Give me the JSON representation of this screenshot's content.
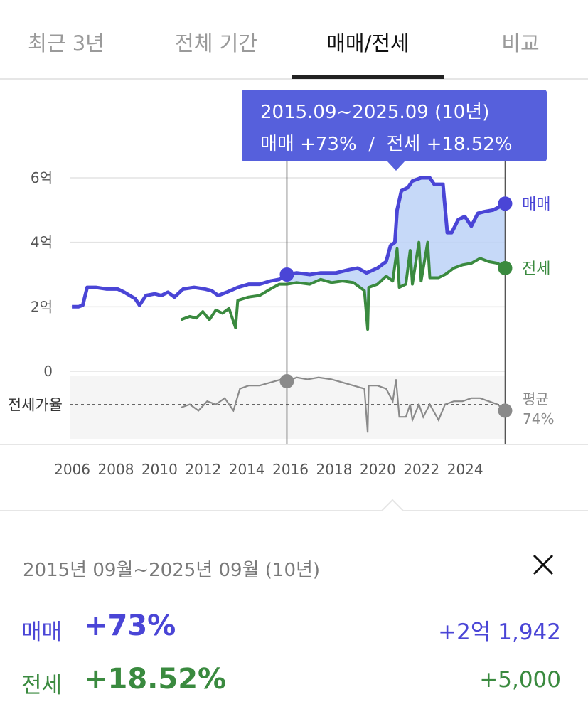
{
  "tabs": [
    {
      "label": "최근 3년",
      "active": false
    },
    {
      "label": "전체 기간",
      "active": false
    },
    {
      "label": "매매/전세",
      "active": true
    },
    {
      "label": "비교",
      "active": false
    }
  ],
  "colors": {
    "sale": "#4a45d6",
    "jeonse": "#3a8a3f",
    "ratio": "#8a8a8a",
    "tooltip_bg": "#5660dc",
    "fill": "#bcd2f7"
  },
  "tooltip": {
    "range": "2015.09~2025.09 (10년)",
    "summary": "매매 +73%  /  전세 +18.52%"
  },
  "chart_data": {
    "type": "line",
    "x_unit": "year",
    "xlim": [
      2005.8,
      2025.8
    ],
    "ylim": [
      0,
      6
    ],
    "y_ticks": [
      {
        "v": 6,
        "label": "6억"
      },
      {
        "v": 4,
        "label": "4억"
      },
      {
        "v": 2,
        "label": "2억"
      },
      {
        "v": 0,
        "label": "0"
      }
    ],
    "x_ticks": [
      "2006",
      "2008",
      "2010",
      "2012",
      "2014",
      "2016",
      "2018",
      "2020",
      "2022",
      "2024"
    ],
    "selection": {
      "start": 2015.75,
      "end": 2025.75
    },
    "series": [
      {
        "name": "매매",
        "points": [
          [
            2005.9,
            2.0
          ],
          [
            2006.2,
            2.0
          ],
          [
            2006.4,
            2.05
          ],
          [
            2006.6,
            2.6
          ],
          [
            2007.0,
            2.6
          ],
          [
            2007.5,
            2.55
          ],
          [
            2008.0,
            2.55
          ],
          [
            2008.3,
            2.45
          ],
          [
            2008.8,
            2.25
          ],
          [
            2009.0,
            2.05
          ],
          [
            2009.3,
            2.35
          ],
          [
            2009.7,
            2.4
          ],
          [
            2010.0,
            2.35
          ],
          [
            2010.3,
            2.45
          ],
          [
            2010.6,
            2.3
          ],
          [
            2011.0,
            2.55
          ],
          [
            2011.5,
            2.6
          ],
          [
            2012.0,
            2.55
          ],
          [
            2012.3,
            2.5
          ],
          [
            2012.6,
            2.35
          ],
          [
            2013.0,
            2.45
          ],
          [
            2013.5,
            2.6
          ],
          [
            2014.0,
            2.7
          ],
          [
            2014.5,
            2.7
          ],
          [
            2015.0,
            2.8
          ],
          [
            2015.4,
            2.85
          ],
          [
            2015.75,
            3.0
          ],
          [
            2016.2,
            3.05
          ],
          [
            2016.8,
            3.0
          ],
          [
            2017.3,
            3.05
          ],
          [
            2018.0,
            3.05
          ],
          [
            2018.6,
            3.15
          ],
          [
            2019.0,
            3.2
          ],
          [
            2019.4,
            3.05
          ],
          [
            2019.9,
            3.2
          ],
          [
            2020.3,
            3.4
          ],
          [
            2020.5,
            3.9
          ],
          [
            2020.7,
            4.0
          ],
          [
            2020.8,
            5.0
          ],
          [
            2021.0,
            5.6
          ],
          [
            2021.3,
            5.7
          ],
          [
            2021.5,
            5.9
          ],
          [
            2021.9,
            6.0
          ],
          [
            2022.3,
            6.0
          ],
          [
            2022.5,
            5.8
          ],
          [
            2022.9,
            5.8
          ],
          [
            2023.1,
            4.3
          ],
          [
            2023.3,
            4.3
          ],
          [
            2023.6,
            4.7
          ],
          [
            2023.9,
            4.8
          ],
          [
            2024.2,
            4.5
          ],
          [
            2024.5,
            4.9
          ],
          [
            2024.8,
            4.95
          ],
          [
            2025.2,
            5.0
          ],
          [
            2025.5,
            5.1
          ],
          [
            2025.75,
            5.2
          ]
        ]
      },
      {
        "name": "전세",
        "points": [
          [
            2010.9,
            1.6
          ],
          [
            2011.3,
            1.7
          ],
          [
            2011.6,
            1.65
          ],
          [
            2011.9,
            1.85
          ],
          [
            2012.2,
            1.6
          ],
          [
            2012.5,
            1.9
          ],
          [
            2012.8,
            1.8
          ],
          [
            2013.1,
            1.95
          ],
          [
            2013.4,
            1.35
          ],
          [
            2013.5,
            2.2
          ],
          [
            2014.0,
            2.3
          ],
          [
            2014.5,
            2.35
          ],
          [
            2015.0,
            2.55
          ],
          [
            2015.4,
            2.7
          ],
          [
            2015.75,
            2.7
          ],
          [
            2016.2,
            2.75
          ],
          [
            2016.8,
            2.7
          ],
          [
            2017.3,
            2.85
          ],
          [
            2017.8,
            2.75
          ],
          [
            2018.3,
            2.8
          ],
          [
            2018.8,
            2.75
          ],
          [
            2019.3,
            2.5
          ],
          [
            2019.45,
            1.3
          ],
          [
            2019.5,
            2.6
          ],
          [
            2019.9,
            2.7
          ],
          [
            2020.3,
            2.95
          ],
          [
            2020.6,
            2.8
          ],
          [
            2020.8,
            3.8
          ],
          [
            2020.9,
            2.6
          ],
          [
            2021.2,
            2.7
          ],
          [
            2021.4,
            3.75
          ],
          [
            2021.5,
            2.7
          ],
          [
            2021.8,
            4.0
          ],
          [
            2021.9,
            2.8
          ],
          [
            2022.2,
            4.0
          ],
          [
            2022.3,
            2.9
          ],
          [
            2022.7,
            2.9
          ],
          [
            2023.0,
            3.0
          ],
          [
            2023.4,
            3.2
          ],
          [
            2023.8,
            3.3
          ],
          [
            2024.2,
            3.35
          ],
          [
            2024.6,
            3.5
          ],
          [
            2025.0,
            3.4
          ],
          [
            2025.4,
            3.35
          ],
          [
            2025.75,
            3.2
          ]
        ]
      },
      {
        "name": "전세가율",
        "average_label": "평균",
        "average_value": "74%",
        "points": [
          [
            2010.9,
            0.5
          ],
          [
            2011.3,
            0.55
          ],
          [
            2011.7,
            0.45
          ],
          [
            2012.1,
            0.6
          ],
          [
            2012.5,
            0.55
          ],
          [
            2012.9,
            0.65
          ],
          [
            2013.3,
            0.45
          ],
          [
            2013.6,
            0.8
          ],
          [
            2014.0,
            0.85
          ],
          [
            2014.5,
            0.85
          ],
          [
            2015.0,
            0.9
          ],
          [
            2015.5,
            0.95
          ],
          [
            2015.75,
            0.92
          ],
          [
            2016.2,
            0.98
          ],
          [
            2016.7,
            0.95
          ],
          [
            2017.2,
            0.98
          ],
          [
            2017.8,
            0.95
          ],
          [
            2018.3,
            0.9
          ],
          [
            2018.8,
            0.85
          ],
          [
            2019.3,
            0.8
          ],
          [
            2019.45,
            0.1
          ],
          [
            2019.5,
            0.85
          ],
          [
            2019.9,
            0.85
          ],
          [
            2020.3,
            0.8
          ],
          [
            2020.6,
            0.6
          ],
          [
            2020.75,
            0.95
          ],
          [
            2020.9,
            0.35
          ],
          [
            2021.2,
            0.35
          ],
          [
            2021.4,
            0.55
          ],
          [
            2021.5,
            0.3
          ],
          [
            2021.8,
            0.55
          ],
          [
            2022.0,
            0.35
          ],
          [
            2022.3,
            0.55
          ],
          [
            2022.7,
            0.3
          ],
          [
            2023.0,
            0.55
          ],
          [
            2023.4,
            0.6
          ],
          [
            2023.8,
            0.6
          ],
          [
            2024.2,
            0.65
          ],
          [
            2024.6,
            0.65
          ],
          [
            2025.0,
            0.6
          ],
          [
            2025.4,
            0.55
          ],
          [
            2025.75,
            0.45
          ]
        ]
      }
    ]
  },
  "summary": {
    "period": "2015년 09월~2025년 09월 (10년)",
    "sale": {
      "name": "매매",
      "percent": "+73%",
      "amount": "+2억 1,942"
    },
    "jeonse": {
      "name": "전세",
      "percent": "+18.52%",
      "amount": "+5,000"
    },
    "close_icon": "close-icon"
  }
}
